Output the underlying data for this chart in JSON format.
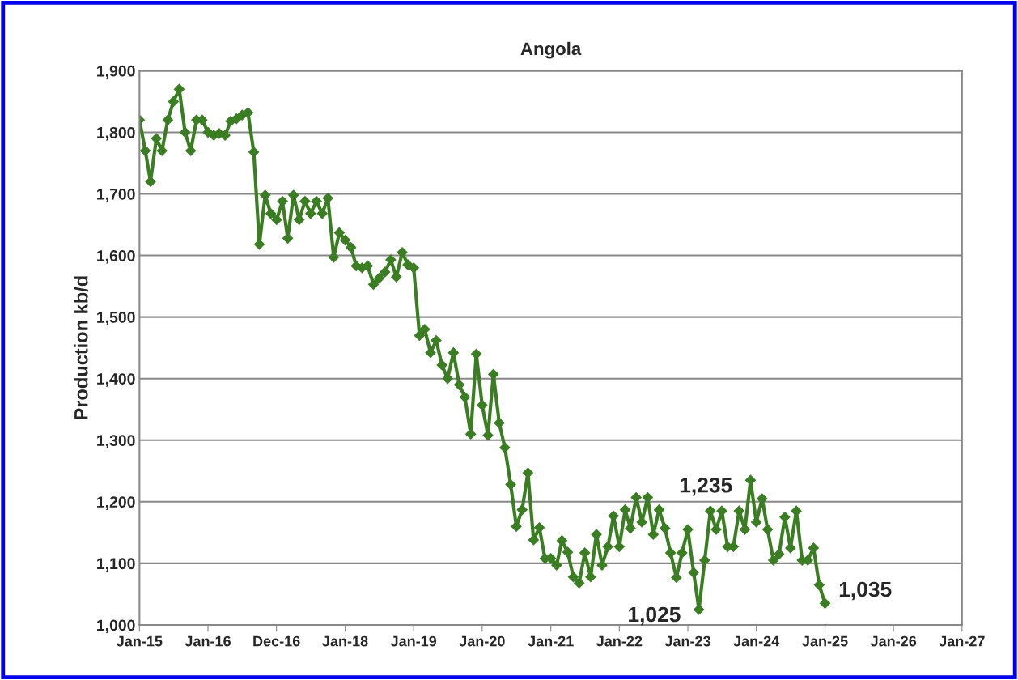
{
  "chart_data": {
    "type": "line",
    "title": "Angola",
    "ylabel": "Production kb/d",
    "x": [
      "2015-01",
      "2015-02",
      "2015-03",
      "2015-04",
      "2015-05",
      "2015-06",
      "2015-07",
      "2015-08",
      "2015-09",
      "2015-10",
      "2015-11",
      "2015-12",
      "2016-01",
      "2016-02",
      "2016-03",
      "2016-04",
      "2016-05",
      "2016-06",
      "2016-07",
      "2016-08",
      "2016-09",
      "2016-10",
      "2016-11",
      "2016-12",
      "2017-01",
      "2017-02",
      "2017-03",
      "2017-04",
      "2017-05",
      "2017-06",
      "2017-07",
      "2017-08",
      "2017-09",
      "2017-10",
      "2017-11",
      "2017-12",
      "2018-01",
      "2018-02",
      "2018-03",
      "2018-04",
      "2018-05",
      "2018-06",
      "2018-07",
      "2018-08",
      "2018-09",
      "2018-10",
      "2018-11",
      "2018-12",
      "2019-01",
      "2019-02",
      "2019-03",
      "2019-04",
      "2019-05",
      "2019-06",
      "2019-07",
      "2019-08",
      "2019-09",
      "2019-10",
      "2019-11",
      "2019-12",
      "2020-01",
      "2020-02",
      "2020-03",
      "2020-04",
      "2020-05",
      "2020-06",
      "2020-07",
      "2020-08",
      "2020-09",
      "2020-10",
      "2020-11",
      "2020-12",
      "2021-01",
      "2021-02",
      "2021-03",
      "2021-04",
      "2021-05",
      "2021-06",
      "2021-07",
      "2021-08",
      "2021-09",
      "2021-10",
      "2021-11",
      "2021-12",
      "2022-01",
      "2022-02",
      "2022-03",
      "2022-04",
      "2022-05",
      "2022-06",
      "2022-07",
      "2022-08",
      "2022-09",
      "2022-10",
      "2022-11",
      "2022-12",
      "2023-01",
      "2023-02",
      "2023-03",
      "2023-04",
      "2023-05",
      "2023-06",
      "2023-07",
      "2023-08",
      "2023-09",
      "2023-10",
      "2023-11",
      "2023-12",
      "2024-01",
      "2024-02",
      "2024-03",
      "2024-04",
      "2024-05",
      "2024-06",
      "2024-07",
      "2024-08",
      "2024-09",
      "2024-10",
      "2024-11",
      "2024-12",
      "2025-01"
    ],
    "series": [
      {
        "color": "#3a7d22",
        "values": [
          1820,
          1770,
          1720,
          1790,
          1770,
          1820,
          1850,
          1870,
          1800,
          1770,
          1820,
          1820,
          1800,
          1795,
          1798,
          1795,
          1818,
          1822,
          1828,
          1832,
          1768,
          1618,
          1698,
          1668,
          1658,
          1688,
          1628,
          1698,
          1658,
          1688,
          1668,
          1688,
          1668,
          1693,
          1597,
          1637,
          1625,
          1613,
          1583,
          1580,
          1583,
          1553,
          1563,
          1573,
          1593,
          1565,
          1605,
          1585,
          1580,
          1470,
          1480,
          1442,
          1462,
          1422,
          1400,
          1442,
          1390,
          1370,
          1310,
          1440,
          1357,
          1308,
          1407,
          1328,
          1288,
          1228,
          1160,
          1187,
          1247,
          1138,
          1158,
          1108,
          1108,
          1097,
          1137,
          1118,
          1078,
          1068,
          1117,
          1078,
          1147,
          1097,
          1127,
          1177,
          1127,
          1187,
          1157,
          1207,
          1167,
          1207,
          1147,
          1187,
          1157,
          1117,
          1077,
          1117,
          1155,
          1085,
          1025,
          1105,
          1185,
          1155,
          1185,
          1127,
          1127,
          1185,
          1155,
          1235,
          1167,
          1205,
          1155,
          1105,
          1115,
          1175,
          1125,
          1185,
          1105,
          1105,
          1125,
          1065,
          1035
        ]
      }
    ],
    "xlim": [
      "2015-01",
      "2027-01"
    ],
    "xticks": [
      {
        "value": "2015-01",
        "label": "Jan-15"
      },
      {
        "value": "2016-01",
        "label": "Jan-16"
      },
      {
        "value": "2016-12-31",
        "label": "Dec-16"
      },
      {
        "value": "2018-01",
        "label": "Jan-18"
      },
      {
        "value": "2019-01",
        "label": "Jan-19"
      },
      {
        "value": "2020-01",
        "label": "Jan-20"
      },
      {
        "value": "2021-01",
        "label": "Jan-21"
      },
      {
        "value": "2022-01",
        "label": "Jan-22"
      },
      {
        "value": "2023-01",
        "label": "Jan-23"
      },
      {
        "value": "2024-01",
        "label": "Jan-24"
      },
      {
        "value": "2025-01",
        "label": "Jan-25"
      },
      {
        "value": "2026-01",
        "label": "Jan-26"
      },
      {
        "value": "2027-01",
        "label": "Jan-27"
      }
    ],
    "ylim": [
      1000,
      1900
    ],
    "yticks": [
      {
        "value": 1000,
        "label": "1,000"
      },
      {
        "value": 1100,
        "label": "1,100"
      },
      {
        "value": 1200,
        "label": "1,200"
      },
      {
        "value": 1300,
        "label": "1,300"
      },
      {
        "value": 1400,
        "label": "1,400"
      },
      {
        "value": 1500,
        "label": "1,500"
      },
      {
        "value": 1600,
        "label": "1,600"
      },
      {
        "value": 1700,
        "label": "1,700"
      },
      {
        "value": 1800,
        "label": "1,800"
      },
      {
        "value": 1900,
        "label": "1,900"
      }
    ],
    "grid": "y",
    "marker": "diamond",
    "line_style": "solid",
    "annotations": [
      {
        "text": "1,235",
        "x": "2023-12",
        "y": 1235
      },
      {
        "text": "1,025",
        "x": "2023-03",
        "y": 1025
      },
      {
        "text": "1,035",
        "x": "2025-01",
        "y": 1035
      }
    ]
  }
}
